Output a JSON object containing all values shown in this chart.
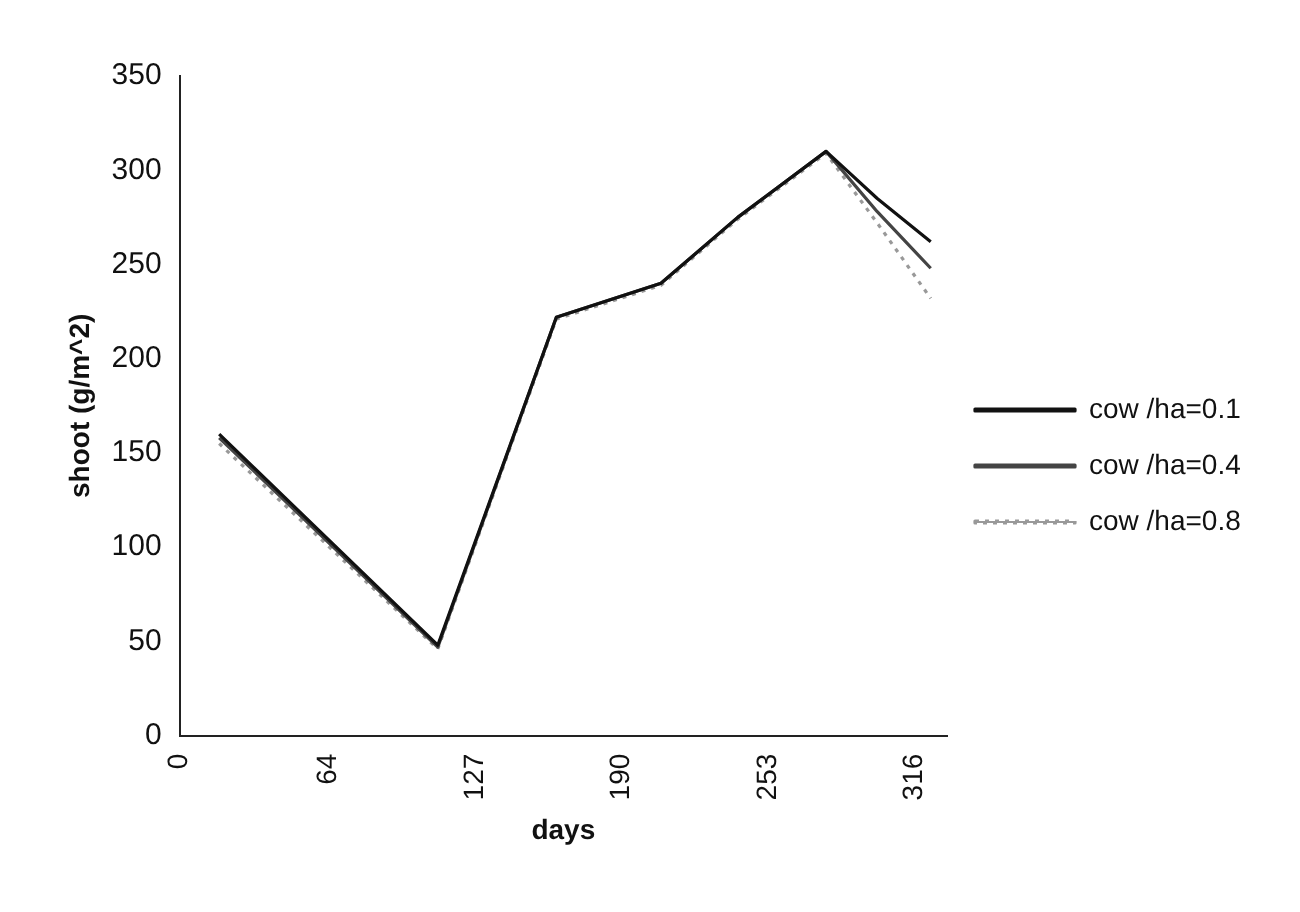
{
  "chart_data": {
    "type": "line",
    "xlabel": "days",
    "ylabel": "shoot (g/m^2)",
    "xlim": [
      0,
      330
    ],
    "xticks": [
      0,
      64,
      127,
      190,
      253,
      316
    ],
    "ylim": [
      0,
      350
    ],
    "yticks": [
      0,
      50,
      100,
      150,
      200,
      250,
      300,
      350
    ],
    "grid": false,
    "legend": "right",
    "marker": "none",
    "series": [
      {
        "name": "cow /ha=0.1",
        "color": "#111111",
        "line_style": "solid",
        "x": [
          17,
          111,
          162,
          207,
          240,
          278,
          300,
          323
        ],
        "values": [
          160,
          48,
          222,
          240,
          275,
          310,
          285,
          262
        ]
      },
      {
        "name": "cow /ha=0.4",
        "color": "#444444",
        "line_style": "solid",
        "x": [
          17,
          111,
          162,
          207,
          240,
          278,
          300,
          323
        ],
        "values": [
          158,
          47,
          222,
          240,
          275,
          310,
          278,
          248
        ]
      },
      {
        "name": "cow /ha=0.8",
        "color": "#999999",
        "line_style": "dotted",
        "x": [
          17,
          111,
          162,
          207,
          240,
          278,
          300,
          323
        ],
        "values": [
          155,
          46,
          221,
          239,
          274,
          309,
          272,
          232
        ]
      }
    ]
  }
}
